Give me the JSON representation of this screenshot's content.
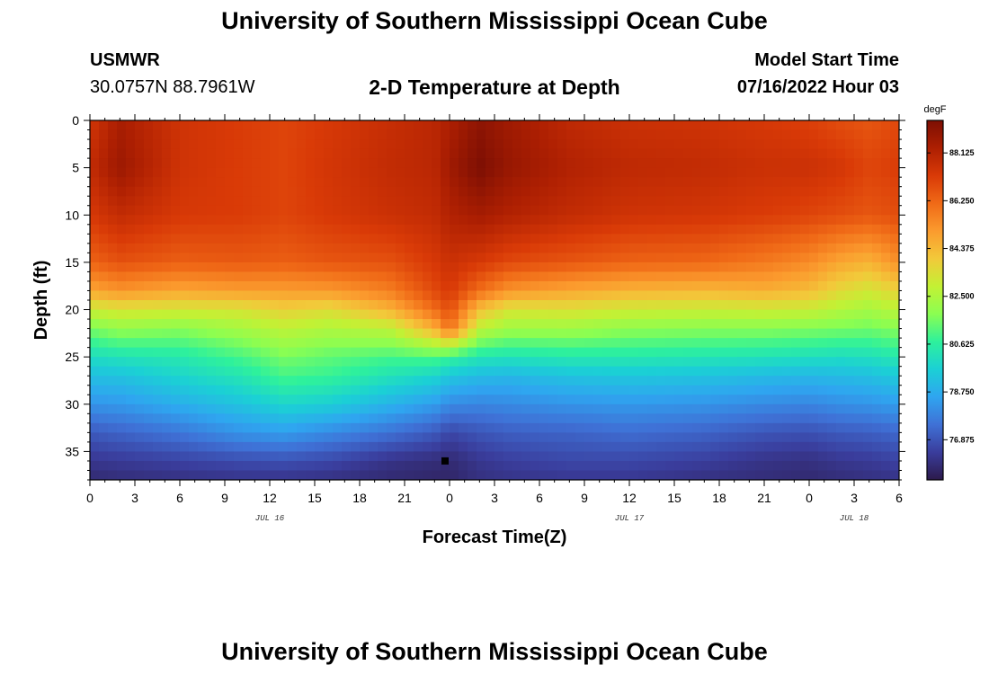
{
  "page": {
    "title_top": "University of Southern Mississippi Ocean Cube",
    "title_bottom": "University of Southern Mississippi Ocean Cube"
  },
  "header": {
    "station": "USMWR",
    "coords": "30.0757N  88.7961W",
    "plot_title": "2-D Temperature at Depth",
    "model_label": "Model Start Time",
    "model_time": "07/16/2022 Hour 03"
  },
  "chart_data": {
    "type": "heatmap",
    "title": "2-D Temperature at Depth",
    "xlabel": "Forecast Time(Z)",
    "ylabel": "Depth (ft)",
    "x_unit": "hours from 07/16/2022 00Z",
    "xlim": [
      0,
      54
    ],
    "ylim": [
      38,
      0
    ],
    "x_tick_values": [
      0,
      3,
      6,
      9,
      12,
      15,
      18,
      21,
      24,
      27,
      30,
      33,
      36,
      39,
      42,
      45,
      48,
      51,
      54
    ],
    "x_tick_labels": [
      "0",
      "3",
      "6",
      "9",
      "12",
      "15",
      "18",
      "21",
      "0",
      "3",
      "6",
      "9",
      "12",
      "15",
      "18",
      "21",
      "0",
      "3",
      "6"
    ],
    "y_tick_values": [
      0,
      5,
      10,
      15,
      20,
      25,
      30,
      35
    ],
    "y_tick_labels": [
      "0",
      "5",
      "10",
      "15",
      "20",
      "25",
      "30",
      "35"
    ],
    "date_labels": [
      {
        "text": "JUL 16",
        "x": 12
      },
      {
        "text": "JUL 17",
        "x": 36
      },
      {
        "text": "JUL 18",
        "x": 51
      }
    ],
    "marker": {
      "x": 23.7,
      "y": 36
    },
    "colorbar": {
      "unit": "degF",
      "min": 75.3,
      "max": 89.4,
      "ticks": [
        "88.125",
        "86.250",
        "84.375",
        "82.500",
        "80.625",
        "78.750",
        "76.875"
      ],
      "colors": [
        "#2c1a4b",
        "#3a3d9c",
        "#3f71d6",
        "#2fa5f0",
        "#1bd0d5",
        "#2ef19c",
        "#8bfe51",
        "#c3f134",
        "#f2c93a",
        "#fb9b2e",
        "#f06a17",
        "#d93a07",
        "#ad1f02",
        "#7d0f03"
      ]
    },
    "profile_times": [
      0,
      2,
      6,
      10,
      13,
      16,
      20,
      23,
      24,
      26,
      28,
      32,
      36,
      41,
      45,
      48,
      50,
      52,
      54
    ],
    "profile_depths": [
      0,
      5,
      10,
      15,
      18,
      20,
      22,
      25,
      27,
      30,
      33,
      36,
      38
    ],
    "temperature_profiles": [
      [
        87.4,
        87.8,
        87.3,
        86.3,
        84.8,
        83.0,
        81.6,
        80.0,
        79.2,
        78.2,
        77.0,
        76.2,
        75.8
      ],
      [
        88.4,
        88.7,
        87.8,
        86.7,
        85.2,
        83.3,
        82.0,
        80.2,
        79.3,
        78.3,
        77.2,
        76.3,
        75.9
      ],
      [
        87.5,
        87.5,
        87.3,
        86.4,
        84.8,
        83.2,
        81.8,
        80.4,
        79.8,
        78.8,
        77.6,
        76.5,
        76.0
      ],
      [
        87.2,
        87.2,
        87.2,
        86.5,
        85.0,
        83.3,
        82.3,
        81.0,
        80.3,
        79.3,
        78.2,
        76.7,
        76.1
      ],
      [
        87.0,
        87.0,
        87.0,
        86.4,
        85.0,
        83.8,
        82.8,
        81.6,
        81.0,
        79.8,
        78.4,
        76.8,
        76.1
      ],
      [
        87.3,
        87.4,
        87.3,
        86.6,
        85.1,
        83.5,
        82.5,
        81.3,
        80.8,
        79.6,
        78.0,
        76.6,
        76.0
      ],
      [
        87.7,
        87.8,
        87.6,
        86.7,
        85.7,
        84.5,
        82.8,
        81.0,
        80.2,
        78.9,
        77.5,
        76.1,
        75.8
      ],
      [
        88.0,
        88.0,
        87.8,
        87.3,
        86.9,
        86.1,
        84.6,
        81.1,
        79.8,
        78.4,
        77.0,
        75.9,
        75.7
      ],
      [
        88.3,
        88.6,
        88.2,
        87.6,
        87.3,
        86.8,
        86.0,
        80.8,
        79.4,
        78.0,
        76.6,
        75.8,
        75.7
      ],
      [
        89.0,
        89.4,
        88.5,
        87.3,
        86.1,
        84.2,
        82.8,
        80.3,
        79.1,
        77.9,
        76.9,
        76.2,
        76.0
      ],
      [
        88.6,
        88.8,
        88.2,
        86.9,
        85.2,
        83.3,
        82.2,
        80.2,
        79.0,
        78.0,
        77.1,
        76.4,
        76.1
      ],
      [
        87.9,
        88.2,
        87.8,
        86.6,
        84.8,
        83.4,
        82.2,
        80.4,
        79.3,
        78.2,
        77.2,
        76.6,
        76.2
      ],
      [
        87.6,
        87.9,
        87.5,
        86.3,
        84.5,
        83.1,
        81.9,
        80.4,
        79.4,
        78.3,
        77.4,
        76.6,
        76.2
      ],
      [
        87.5,
        87.8,
        87.4,
        86.2,
        84.4,
        83.0,
        81.8,
        80.3,
        79.3,
        78.2,
        77.2,
        76.4,
        76.0
      ],
      [
        87.3,
        87.6,
        87.2,
        85.8,
        84.6,
        83.1,
        81.8,
        80.2,
        79.1,
        78.0,
        76.9,
        76.1,
        75.9
      ],
      [
        87.1,
        87.6,
        87.0,
        85.4,
        84.3,
        83.0,
        81.7,
        80.1,
        79.0,
        77.9,
        76.8,
        76.0,
        75.8
      ],
      [
        86.8,
        87.4,
        86.8,
        84.8,
        83.6,
        82.6,
        81.6,
        80.0,
        79.1,
        78.1,
        77.0,
        76.2,
        75.9
      ],
      [
        86.6,
        87.0,
        86.6,
        84.5,
        83.2,
        82.3,
        81.5,
        80.1,
        79.2,
        78.2,
        77.1,
        76.3,
        76.0
      ],
      [
        86.9,
        87.2,
        86.8,
        85.3,
        83.8,
        82.8,
        81.8,
        80.4,
        79.5,
        78.4,
        77.3,
        76.5,
        76.1
      ]
    ]
  }
}
